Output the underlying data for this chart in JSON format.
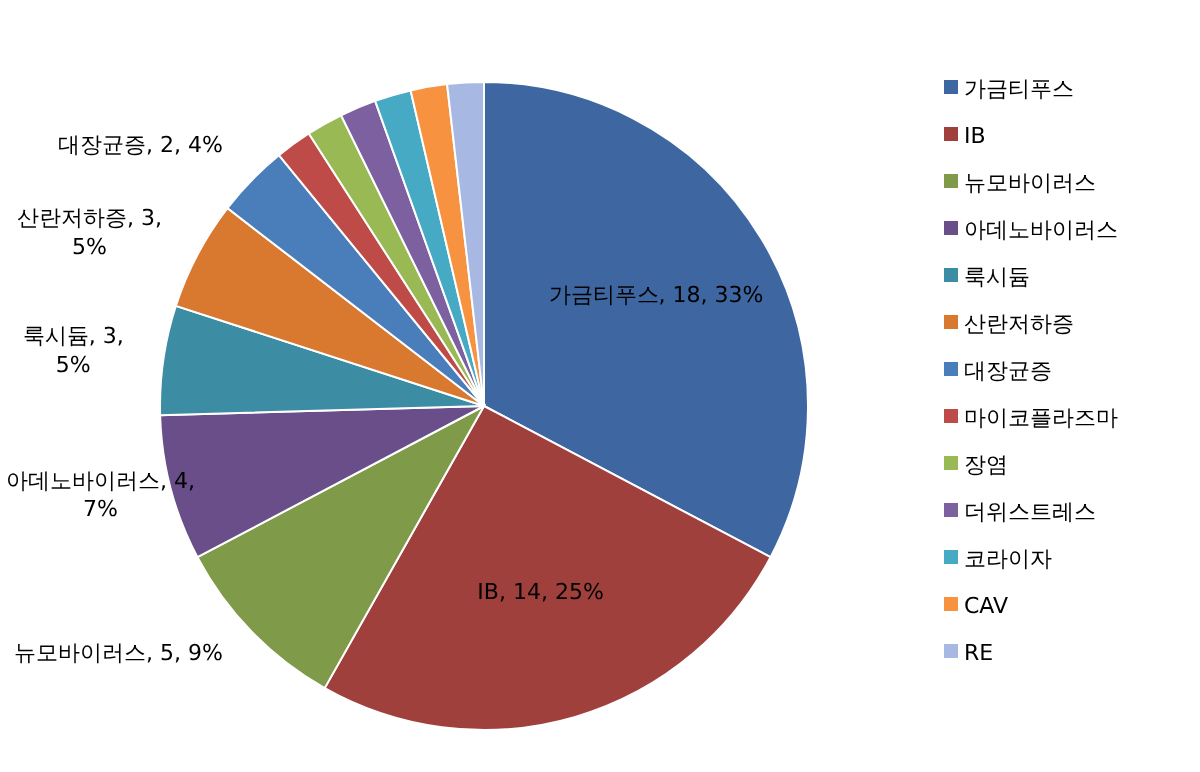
{
  "chart_data": {
    "type": "pie",
    "legend": "right",
    "categories": [
      "가금티푸스",
      "IB",
      "뉴모바이러스",
      "아데노바이러스",
      "룩시듐",
      "산란저하증",
      "대장균증",
      "마이코플라즈마",
      "장염",
      "더위스트레스",
      "코라이자",
      "CAV",
      "RE"
    ],
    "values": [
      18,
      14,
      5,
      4,
      3,
      3,
      2,
      1,
      1,
      1,
      1,
      1,
      1
    ],
    "colors": [
      "#3e66a0",
      "#a0403d",
      "#7f9a48",
      "#694e8a",
      "#3c8da3",
      "#d9782f",
      "#4a7ebb",
      "#be4b48",
      "#98b954",
      "#7d60a0",
      "#46aac5",
      "#f69240",
      "#a7b9e3"
    ],
    "value_labels": [
      "가금티푸스, 18, 33%",
      "IB, 14, 25%",
      "뉴모바이러스, 5, 9%",
      "아데노바이러스, 4, 7%",
      "룩시듐, 3, 5%",
      "산란저하증, 3, 5%",
      "대장균증, 2, 4%",
      null,
      null,
      null,
      null,
      null,
      null
    ]
  }
}
